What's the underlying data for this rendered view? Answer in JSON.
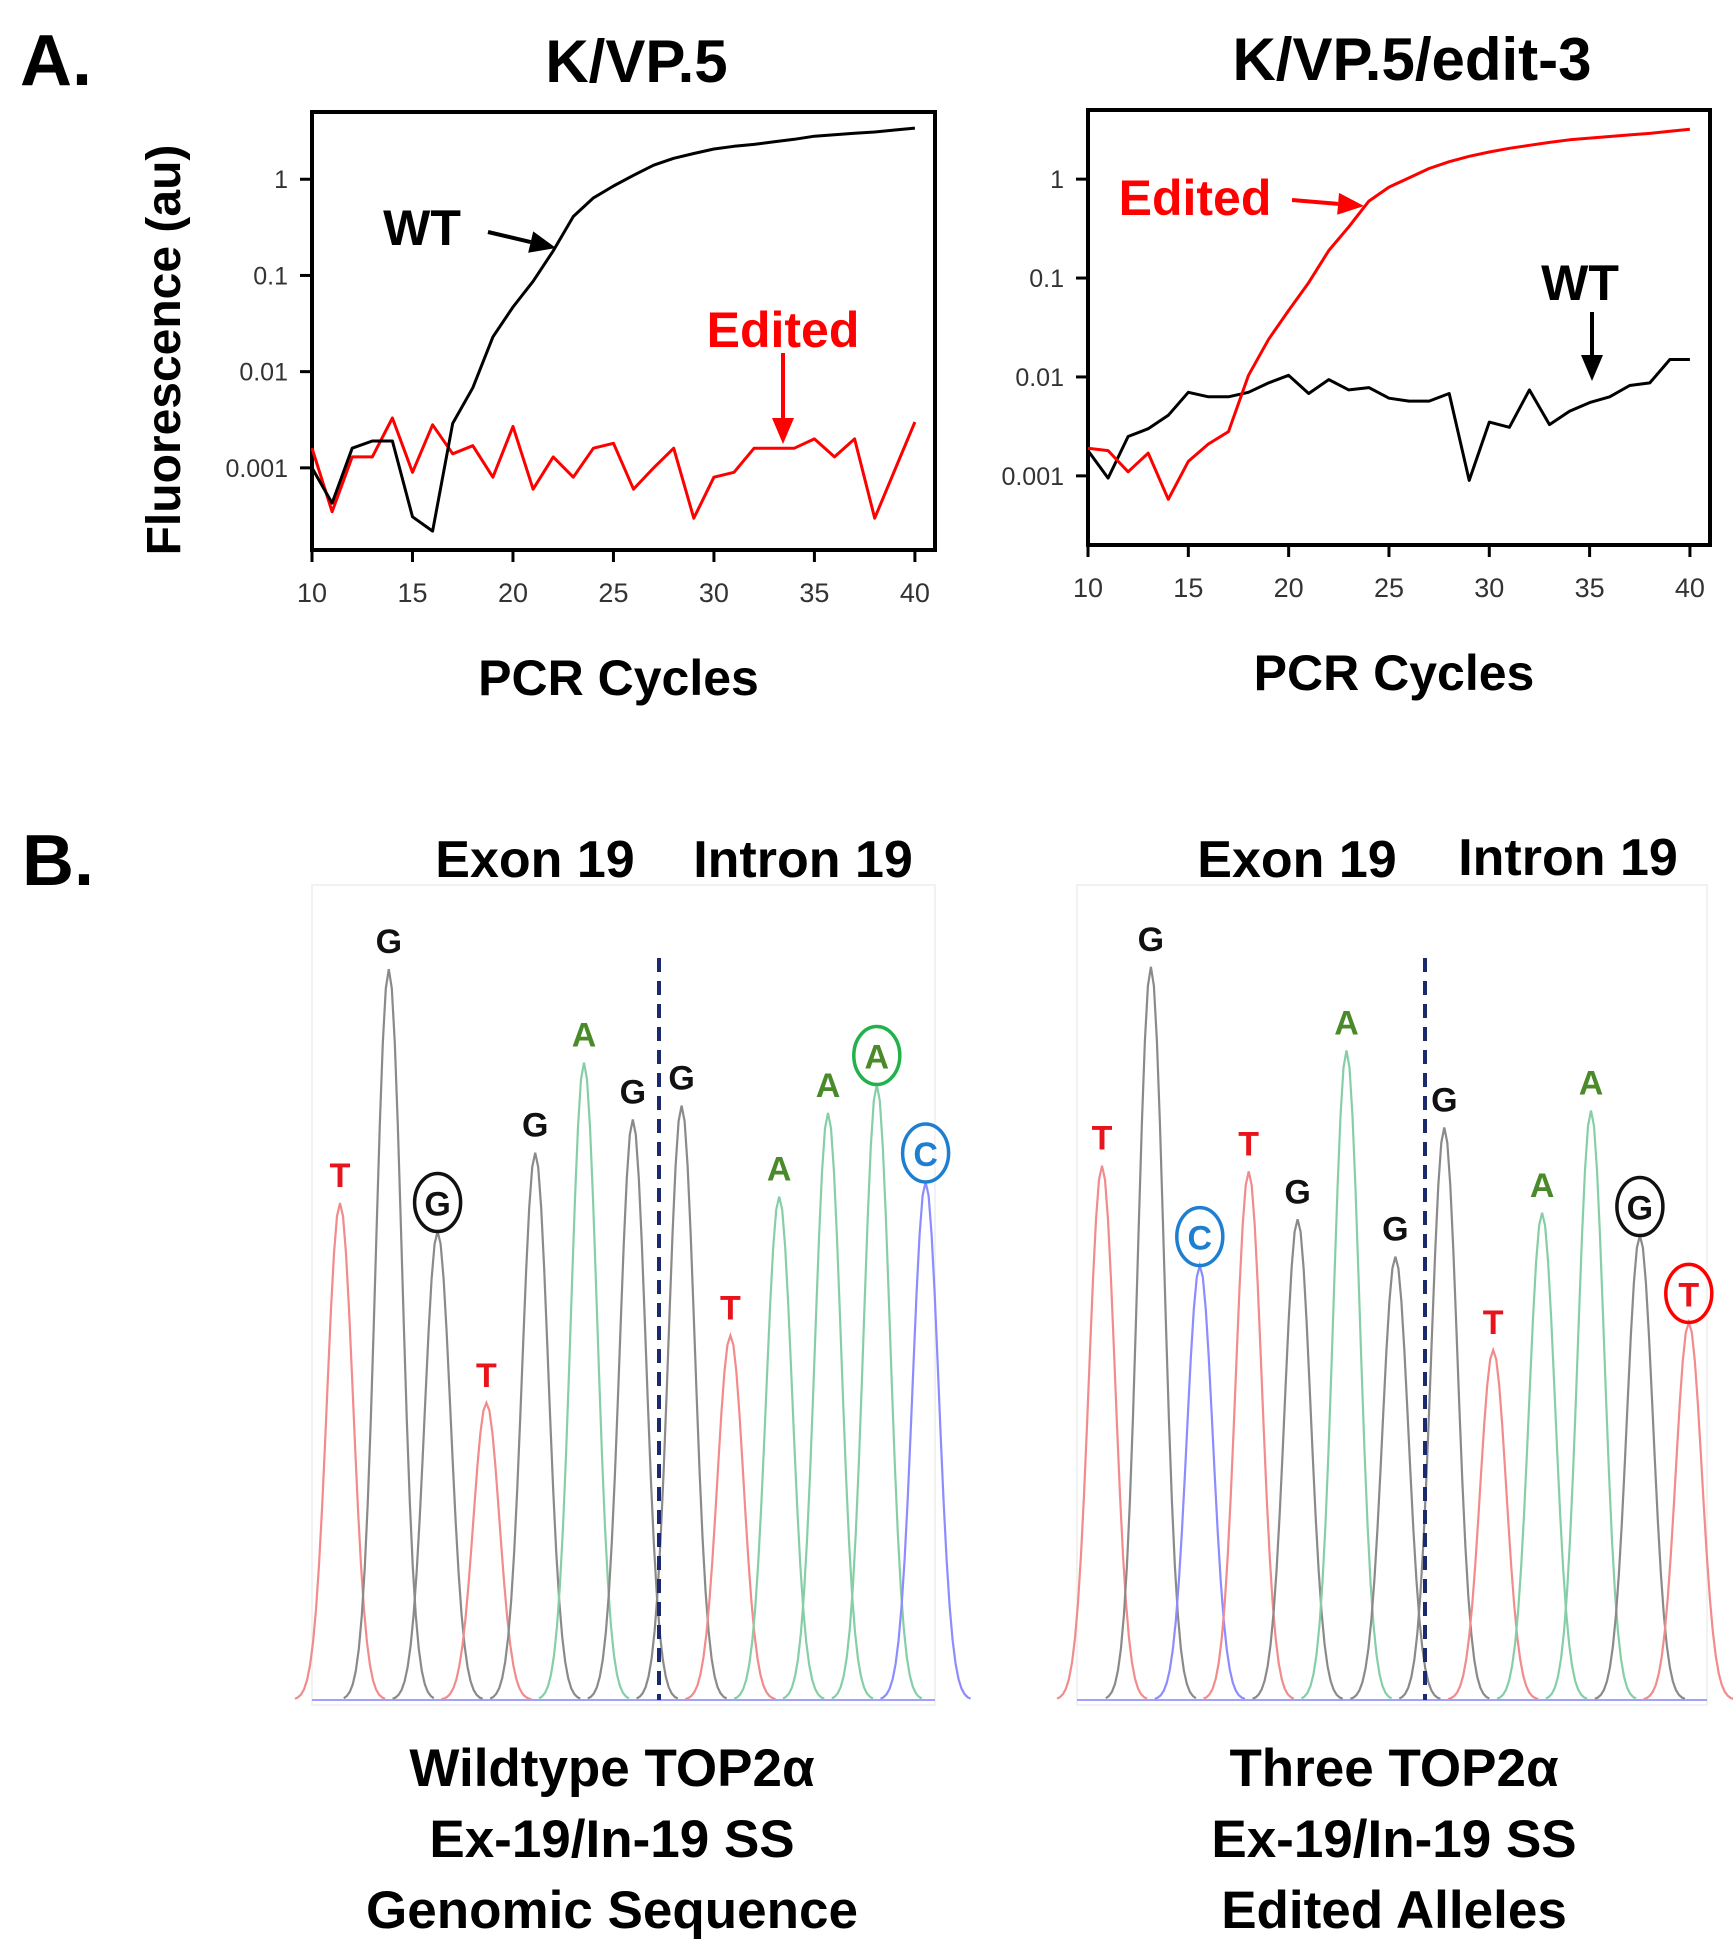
{
  "panel_a": {
    "label": "A.",
    "ylabel": "Fluorescence (au)"
  },
  "panel_b": {
    "label": "B."
  },
  "colors": {
    "wt": "#000000",
    "edited": "#ff0000",
    "T": "#e8141c",
    "G": "#111111",
    "A": "#4a8a2a",
    "C": "#1e7fd0",
    "trace_T": "#f28b8b",
    "trace_G": "#8a8a8a",
    "trace_A": "#86cfa6",
    "trace_C": "#8c8cff",
    "divider": "#1a2a6c"
  },
  "chart_data": [
    {
      "type": "line",
      "title": "K/VP.5",
      "xlabel": "PCR Cycles",
      "ylabel": "Fluorescence (au)",
      "yscale": "log",
      "xlim": [
        10,
        41
      ],
      "ylim": [
        0.00014,
        5
      ],
      "xticks": [
        "10",
        "15",
        "20",
        "25",
        "30",
        "35",
        "40"
      ],
      "yticks": [
        "1",
        "0.1",
        "0.01",
        "0.001"
      ],
      "x": [
        10,
        11,
        12,
        13,
        14,
        15,
        16,
        17,
        18,
        19,
        20,
        21,
        22,
        23,
        24,
        25,
        26,
        27,
        28,
        29,
        30,
        31,
        32,
        33,
        34,
        35,
        36,
        37,
        38,
        39,
        40
      ],
      "series": [
        {
          "name": "WT",
          "values": [
            0.001,
            0.00043,
            0.0016,
            0.0019,
            0.0019,
            0.00031,
            0.00022,
            0.0029,
            0.0068,
            0.023,
            0.047,
            0.087,
            0.18,
            0.41,
            0.64,
            0.85,
            1.1,
            1.4,
            1.65,
            1.85,
            2.06,
            2.2,
            2.3,
            2.45,
            2.6,
            2.8,
            2.9,
            3.0,
            3.1,
            3.25,
            3.4
          ]
        },
        {
          "name": "Edited",
          "values": [
            0.0016,
            0.00035,
            0.0013,
            0.0013,
            0.0033,
            0.0009,
            0.0028,
            0.0014,
            0.0017,
            0.0008,
            0.0027,
            0.0006,
            0.0013,
            0.0008,
            0.0016,
            0.0018,
            0.0006,
            0.001,
            0.0016,
            0.0003,
            0.0008,
            0.0009,
            0.0016,
            0.0016,
            0.0016,
            0.002,
            0.0013,
            0.002,
            0.0003,
            0.00095,
            0.003
          ]
        }
      ],
      "annotations": [
        {
          "text": "WT",
          "series": "WT"
        },
        {
          "text": "Edited",
          "series": "Edited"
        }
      ]
    },
    {
      "type": "line",
      "title": "K/VP.5/edit-3",
      "xlabel": "PCR Cycles",
      "ylabel": "",
      "yscale": "log",
      "xlim": [
        10,
        41
      ],
      "ylim": [
        0.0002,
        5
      ],
      "xticks": [
        "10",
        "15",
        "20",
        "25",
        "30",
        "35",
        "40"
      ],
      "yticks": [
        "1",
        "0.1",
        "0.01",
        "0.001"
      ],
      "x": [
        10,
        11,
        12,
        13,
        14,
        15,
        16,
        17,
        18,
        19,
        20,
        21,
        22,
        23,
        24,
        25,
        26,
        27,
        28,
        29,
        30,
        31,
        32,
        33,
        34,
        35,
        36,
        37,
        38,
        39,
        40
      ],
      "series": [
        {
          "name": "WT",
          "values": [
            0.0018,
            0.00095,
            0.0025,
            0.003,
            0.0041,
            0.007,
            0.0063,
            0.0063,
            0.007,
            0.0087,
            0.0104,
            0.0068,
            0.0094,
            0.0074,
            0.0078,
            0.0061,
            0.0057,
            0.0057,
            0.0068,
            0.0009,
            0.0035,
            0.0031,
            0.0074,
            0.0033,
            0.0045,
            0.0055,
            0.0063,
            0.0082,
            0.0087,
            0.015,
            0.015
          ]
        },
        {
          "name": "Edited",
          "values": [
            0.0019,
            0.0018,
            0.0011,
            0.0017,
            0.00058,
            0.0014,
            0.0021,
            0.0028,
            0.0104,
            0.024,
            0.047,
            0.09,
            0.19,
            0.33,
            0.6,
            0.83,
            1.03,
            1.28,
            1.5,
            1.7,
            1.88,
            2.05,
            2.2,
            2.35,
            2.5,
            2.6,
            2.7,
            2.8,
            2.9,
            3.05,
            3.2
          ]
        }
      ],
      "annotations": [
        {
          "text": "Edited",
          "series": "Edited"
        },
        {
          "text": "WT",
          "series": "WT"
        }
      ]
    },
    {
      "type": "chromatogram",
      "header_left": "Exon 19",
      "header_right": "Intron 19",
      "caption": [
        "Wildtype TOP2α",
        "Ex-19/In-19 SS",
        "Genomic Sequence"
      ],
      "boundary_after_index": 6,
      "bases": [
        {
          "base": "T",
          "height": 612
        },
        {
          "base": "G",
          "height": 900
        },
        {
          "base": "G",
          "height": 577,
          "circled": true
        },
        {
          "base": "T",
          "height": 366
        },
        {
          "base": "G",
          "height": 674
        },
        {
          "base": "A",
          "height": 785
        },
        {
          "base": "G",
          "height": 715
        },
        {
          "base": "G",
          "height": 732
        },
        {
          "base": "T",
          "height": 449
        },
        {
          "base": "A",
          "height": 620
        },
        {
          "base": "A",
          "height": 723
        },
        {
          "base": "A",
          "height": 758,
          "circled": true
        },
        {
          "base": "C",
          "height": 638,
          "circled": true
        }
      ]
    },
    {
      "type": "chromatogram",
      "header_left": "Exon 19",
      "header_right": "Intron 19",
      "caption": [
        "Three TOP2α",
        "Ex-19/In-19 SS",
        "Edited Alleles"
      ],
      "boundary_after_index": 6,
      "bases": [
        {
          "base": "T",
          "height": 658
        },
        {
          "base": "G",
          "height": 903
        },
        {
          "base": "C",
          "height": 535,
          "circled": true
        },
        {
          "base": "T",
          "height": 651
        },
        {
          "base": "G",
          "height": 592
        },
        {
          "base": "A",
          "height": 800
        },
        {
          "base": "G",
          "height": 546
        },
        {
          "base": "G",
          "height": 705
        },
        {
          "base": "T",
          "height": 431
        },
        {
          "base": "A",
          "height": 600
        },
        {
          "base": "A",
          "height": 726
        },
        {
          "base": "G",
          "height": 572,
          "circled": true
        },
        {
          "base": "T",
          "height": 465,
          "circled": true
        }
      ]
    }
  ]
}
